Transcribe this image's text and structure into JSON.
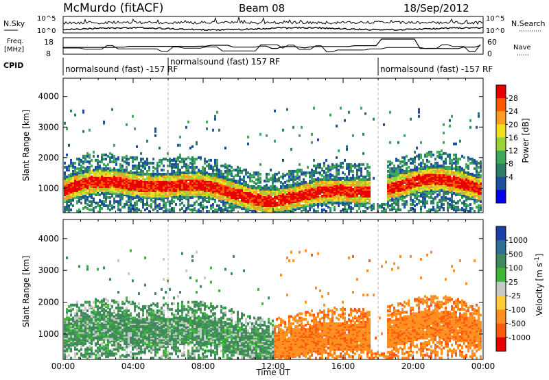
{
  "header": {
    "station": "McMurdo (fitACF)",
    "beam": "Beam 08",
    "date": "18/Sep/2012"
  },
  "noise_panel": {
    "left_label": "N.Sky",
    "right_label": "N.Search",
    "left_ticks": [
      "10^5",
      "10^0"
    ],
    "right_ticks": [
      "10^5",
      "10^0"
    ]
  },
  "freq_panel": {
    "left_label_line1": "Freq.",
    "left_label_line2": "[MHz]",
    "left_ticks": [
      "18",
      "8"
    ],
    "right_label": "Nave",
    "right_ticks": [
      "60",
      "0"
    ]
  },
  "cpid": {
    "label": "CPID",
    "segments": [
      {
        "start_hour": 0,
        "text": "normalsound (fast) -157 RF"
      },
      {
        "start_hour": 6,
        "text": "normalsound (fast) 157 RF"
      },
      {
        "start_hour": 18,
        "text": "normalsound (fast) -157 RF"
      }
    ]
  },
  "chart_data": [
    {
      "type": "heatmap",
      "name": "Power",
      "ylabel": "Slant Range [km]",
      "yticks": [
        1000,
        2000,
        3000,
        4000
      ],
      "ylim": [
        200,
        4600
      ],
      "xlim": [
        0,
        24
      ],
      "colorbar_label": "Power [dB]",
      "colorbar_ticks": [
        "28",
        "24",
        "20",
        "16",
        "12",
        "8",
        "4"
      ],
      "colorbar_colors": [
        "#e80000",
        "#ff5a00",
        "#ff9d20",
        "#f2e020",
        "#9ad23a",
        "#3ea85a",
        "#2d7d66",
        "#1d4fa0",
        "#0000ee"
      ]
    },
    {
      "type": "heatmap",
      "name": "Velocity",
      "ylabel": "Slant Range [km]",
      "yticks": [
        1000,
        2000,
        3000,
        4000
      ],
      "ylim": [
        200,
        4600
      ],
      "xlim": [
        0,
        24
      ],
      "xticks": [
        "00:00",
        "04:00",
        "08:00",
        "12:00",
        "16:00",
        "20:00",
        "00:00"
      ],
      "xlabel": "Time UT",
      "colorbar_label": "Velocity [m s^-1]",
      "colorbar_ticks": [
        "1000",
        "500",
        "100",
        "25",
        "-25",
        "-100",
        "-500",
        "-1000"
      ],
      "colorbar_colors": [
        "#1d3fa8",
        "#2f6e96",
        "#3e8a5a",
        "#3fb83a",
        "#c8c8c8",
        "#ffcc33",
        "#ff9020",
        "#ff5a10",
        "#e80000"
      ]
    }
  ]
}
